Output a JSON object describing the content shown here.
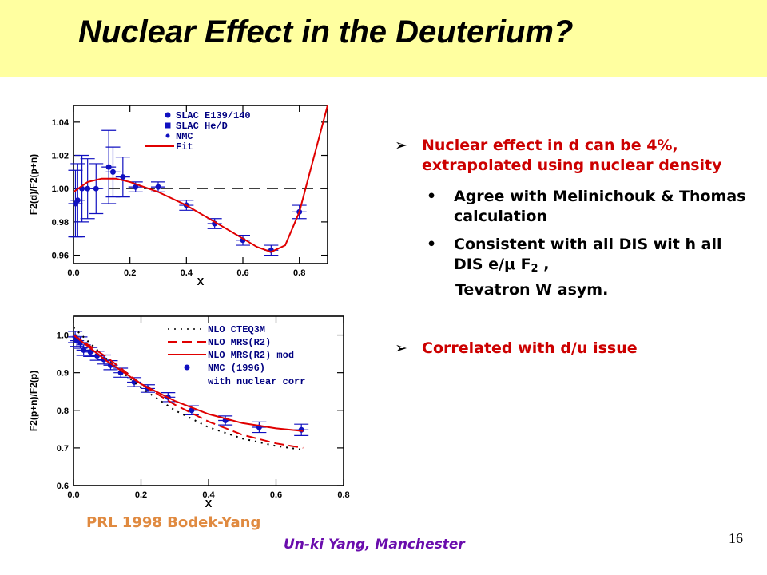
{
  "slide": {
    "title": "Nuclear Effect in the Deuterium?",
    "reference": "PRL 1998 Bodek-Yang",
    "footer": "Un-ki Yang, Manchester",
    "page_number": "16",
    "bullets": {
      "b1_text": "Nuclear effect in d can be 4%, extrapolated using nuclear density",
      "sub1": "Agree with Melinichouk & Thomas calculation",
      "sub2_a": "Consistent with all DIS wit h all DIS e/",
      "sub2_mu": "μ",
      "sub2_f": " F",
      "sub2_sub": "2",
      "sub2_tail": " ,",
      "sub2_cont": "Tevatron W asym.",
      "b2_text": "Correlated with d/u issue",
      "arrow_mark": "➢",
      "dot_mark": "•"
    }
  },
  "chart_data": [
    {
      "type": "scatter",
      "xlabel": "X",
      "ylabel": "F2(d)/F2(p+n)",
      "xlim": [
        0.0,
        0.9
      ],
      "ylim": [
        0.955,
        1.05
      ],
      "xticks": [
        "0.0",
        "0.2",
        "0.4",
        "0.6",
        "0.8"
      ],
      "yticks": [
        "0.96",
        "0.98",
        "1.00",
        "1.02",
        "1.04"
      ],
      "reference_line": 1.0,
      "legend": [
        "SLAC E139/140",
        "SLAC He/D",
        "NMC",
        "Fit"
      ],
      "series": [
        {
          "name": "NMC",
          "points": [
            {
              "x": 0.007,
              "y": 0.991,
              "err": 0.02
            },
            {
              "x": 0.015,
              "y": 0.993,
              "err": 0.022
            },
            {
              "x": 0.03,
              "y": 1.0,
              "err": 0.02
            },
            {
              "x": 0.05,
              "y": 1.0,
              "err": 0.018
            },
            {
              "x": 0.08,
              "y": 1.0,
              "err": 0.015
            },
            {
              "x": 0.125,
              "y": 1.013,
              "err": 0.022
            },
            {
              "x": 0.14,
              "y": 1.01,
              "err": 0.015
            },
            {
              "x": 0.175,
              "y": 1.007,
              "err": 0.012
            }
          ]
        },
        {
          "name": "SLAC E139/140",
          "points": [
            {
              "x": 0.22,
              "y": 1.001,
              "err": 0.003
            },
            {
              "x": 0.3,
              "y": 1.001,
              "err": 0.003
            },
            {
              "x": 0.4,
              "y": 0.99,
              "err": 0.003
            },
            {
              "x": 0.5,
              "y": 0.979,
              "err": 0.003
            },
            {
              "x": 0.6,
              "y": 0.969,
              "err": 0.003
            },
            {
              "x": 0.7,
              "y": 0.963,
              "err": 0.003
            },
            {
              "x": 0.8,
              "y": 0.986,
              "err": 0.004
            }
          ]
        },
        {
          "name": "Fit",
          "line": [
            [
              0.0,
              0.998
            ],
            [
              0.05,
              1.004
            ],
            [
              0.1,
              1.006
            ],
            [
              0.15,
              1.006
            ],
            [
              0.2,
              1.004
            ],
            [
              0.3,
              0.998
            ],
            [
              0.4,
              0.99
            ],
            [
              0.5,
              0.98
            ],
            [
              0.6,
              0.97
            ],
            [
              0.65,
              0.965
            ],
            [
              0.7,
              0.962
            ],
            [
              0.75,
              0.966
            ],
            [
              0.8,
              0.986
            ],
            [
              0.85,
              1.018
            ],
            [
              0.9,
              1.05
            ]
          ]
        }
      ]
    },
    {
      "type": "scatter",
      "xlabel": "X",
      "ylabel": "F2(p+n)/F2(p)",
      "xlim": [
        0.0,
        0.8
      ],
      "ylim": [
        0.6,
        1.05
      ],
      "xticks": [
        "0.0",
        "0.2",
        "0.4",
        "0.6",
        "0.8"
      ],
      "yticks": [
        "0.6",
        "0.7",
        "0.8",
        "0.9",
        "1.0"
      ],
      "legend": [
        "NLO CTEQ3M",
        "NLO MRS(R2)",
        "NLO MRS(R2) mod",
        "NMC (1996)",
        "with nuclear corr"
      ],
      "series": [
        {
          "name": "NMC (1996)",
          "points": [
            {
              "x": 0.005,
              "y": 0.995,
              "err": 0.015
            },
            {
              "x": 0.01,
              "y": 0.985,
              "err": 0.015
            },
            {
              "x": 0.02,
              "y": 0.98,
              "err": 0.015
            },
            {
              "x": 0.03,
              "y": 0.96,
              "err": 0.014
            },
            {
              "x": 0.05,
              "y": 0.955,
              "err": 0.012
            },
            {
              "x": 0.07,
              "y": 0.945,
              "err": 0.012
            },
            {
              "x": 0.09,
              "y": 0.935,
              "err": 0.012
            },
            {
              "x": 0.11,
              "y": 0.92,
              "err": 0.012
            },
            {
              "x": 0.14,
              "y": 0.9,
              "err": 0.012
            },
            {
              "x": 0.18,
              "y": 0.875,
              "err": 0.012
            },
            {
              "x": 0.22,
              "y": 0.858,
              "err": 0.01
            },
            {
              "x": 0.28,
              "y": 0.835,
              "err": 0.012
            },
            {
              "x": 0.35,
              "y": 0.8,
              "err": 0.012
            },
            {
              "x": 0.45,
              "y": 0.773,
              "err": 0.012
            },
            {
              "x": 0.55,
              "y": 0.755,
              "err": 0.014
            },
            {
              "x": 0.675,
              "y": 0.748,
              "err": 0.015
            }
          ]
        },
        {
          "name": "NLO CTEQ3M",
          "line": [
            [
              0.0,
              1.02
            ],
            [
              0.1,
              0.935
            ],
            [
              0.2,
              0.86
            ],
            [
              0.3,
              0.8
            ],
            [
              0.4,
              0.755
            ],
            [
              0.5,
              0.725
            ],
            [
              0.6,
              0.705
            ],
            [
              0.68,
              0.695
            ]
          ]
        },
        {
          "name": "NLO MRS(R2)",
          "line": [
            [
              0.0,
              1.0
            ],
            [
              0.1,
              0.94
            ],
            [
              0.2,
              0.87
            ],
            [
              0.3,
              0.815
            ],
            [
              0.4,
              0.77
            ],
            [
              0.5,
              0.735
            ],
            [
              0.6,
              0.712
            ],
            [
              0.68,
              0.7
            ]
          ]
        },
        {
          "name": "NLO MRS(R2) mod",
          "line": [
            [
              0.0,
              1.0
            ],
            [
              0.1,
              0.93
            ],
            [
              0.2,
              0.87
            ],
            [
              0.3,
              0.825
            ],
            [
              0.4,
              0.79
            ],
            [
              0.5,
              0.766
            ],
            [
              0.6,
              0.752
            ],
            [
              0.68,
              0.745
            ]
          ]
        }
      ]
    }
  ]
}
